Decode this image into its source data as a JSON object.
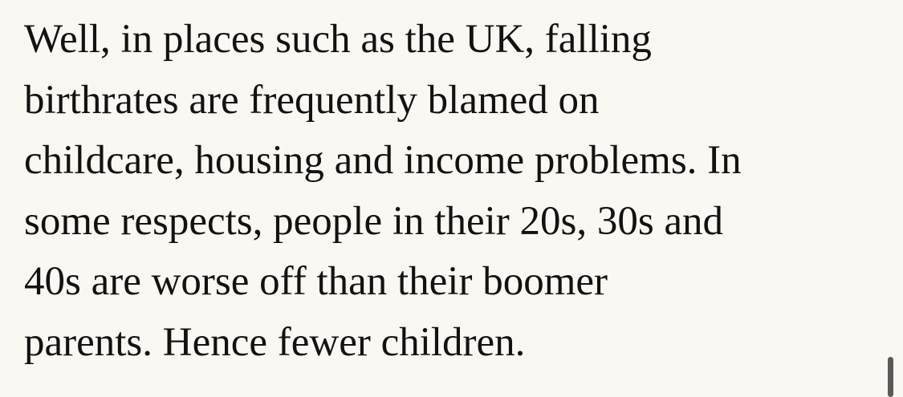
{
  "paragraph": {
    "lines": [
      "Well, in places such as the UK, falling",
      "birthrates are frequently blamed on",
      "childcare, housing and income problems. In",
      "some respects, people in their 20s, 30s and",
      "40s are worse off than their boomer",
      "parents. Hence fewer children."
    ]
  }
}
